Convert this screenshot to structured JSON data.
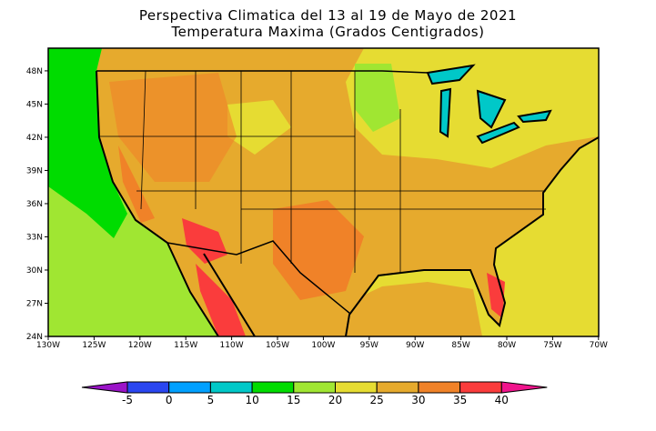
{
  "title": "Perspectiva Climatica del 13 al 19 de Mayo de 2021",
  "subtitle": "Temperatura Maxima (Grados Centigrados)",
  "axes": {
    "lat_labels": [
      "48N",
      "45N",
      "42N",
      "39N",
      "36N",
      "33N",
      "30N",
      "27N",
      "24N"
    ],
    "lat_values": [
      48,
      45,
      42,
      39,
      36,
      33,
      30,
      27,
      24
    ],
    "lon_labels": [
      "130W",
      "125W",
      "120W",
      "115W",
      "110W",
      "105W",
      "100W",
      "95W",
      "90W",
      "85W",
      "80W",
      "75W",
      "70W"
    ],
    "lon_values": [
      -130,
      -125,
      -120,
      -115,
      -110,
      -105,
      -100,
      -95,
      -90,
      -85,
      -80,
      -75,
      -70
    ]
  },
  "colorbar": {
    "labels": [
      "-5",
      "0",
      "5",
      "10",
      "15",
      "20",
      "25",
      "30",
      "35",
      "40"
    ],
    "colors": [
      "#9b14c8",
      "#2a46f0",
      "#00a0ff",
      "#00c8c8",
      "#00dc00",
      "#a0e632",
      "#e6dc32",
      "#e6aa2d",
      "#f08228",
      "#fa3c3c",
      "#f0148c"
    ]
  }
}
